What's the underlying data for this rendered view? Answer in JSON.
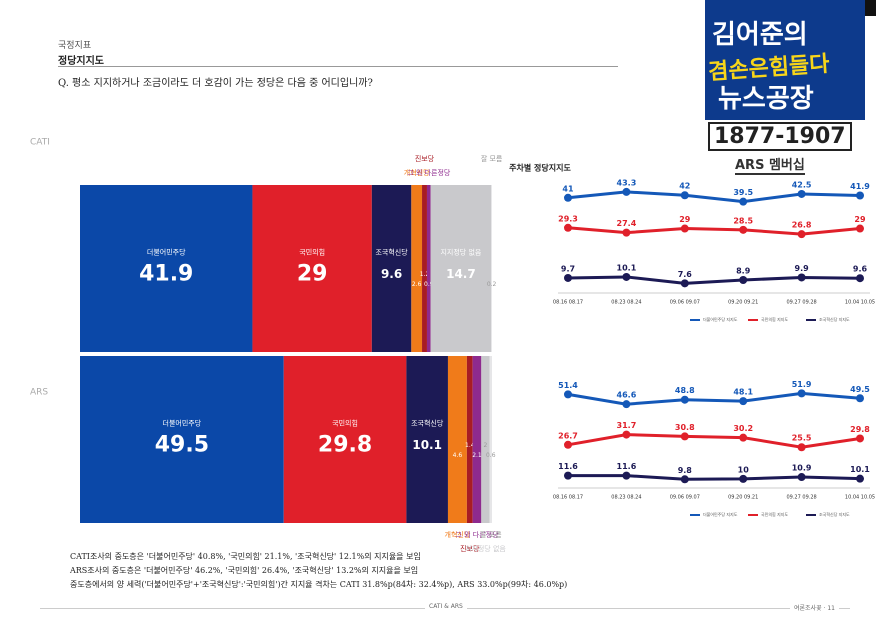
{
  "header": {
    "category": "국정지표",
    "subtitle": "정당지지도",
    "question": "Q. 평소 지지하거나 조금이라도 더 호감이 가는 정당은 다음 중 어디입니까?"
  },
  "chart_data": [
    {
      "type": "stackedbar",
      "label": "CATI",
      "categories": [
        "더불어민주당",
        "국민의힘",
        "조국혁신당",
        "개혁신당",
        "진보당",
        "그 외 다른정당",
        "지지정당 없음",
        "잘 모름"
      ],
      "values": [
        41.9,
        29.0,
        9.6,
        2.6,
        1.2,
        0.9,
        14.7,
        0.2
      ],
      "colors": [
        "#0b48a8",
        "#e0202a",
        "#1c1a55",
        "#f07b1a",
        "#a81c24",
        "#8e2a8e",
        "#c9c9cc",
        "#e6e6e8"
      ]
    },
    {
      "type": "stackedbar",
      "label": "ARS",
      "categories": [
        "더불어민주당",
        "국민의힘",
        "조국혁신당",
        "개혁신당",
        "진보당",
        "그 외 다른정당",
        "지지정당 없음",
        "잘 모름"
      ],
      "values": [
        49.5,
        29.8,
        10.1,
        4.6,
        1.4,
        2.1,
        2.0,
        0.6
      ],
      "colors": [
        "#0b48a8",
        "#e0202a",
        "#1c1a55",
        "#f07b1a",
        "#a81c24",
        "#8e2a8e",
        "#c9c9cc",
        "#e6e6e8"
      ]
    },
    {
      "type": "line",
      "title": "주차별 정당지지도",
      "categories": [
        "08.16 08.17",
        "08.23 08.24",
        "09.06 09.07",
        "09.20 09.21",
        "09.27 09.28",
        "10.04 10.05"
      ],
      "ylim": [
        5,
        46
      ],
      "series": [
        {
          "name": "더불어민주당 지지도",
          "color": "#1458b8",
          "values": [
            41.0,
            43.3,
            42.0,
            39.5,
            42.5,
            41.9
          ]
        },
        {
          "name": "국민의힘 지지도",
          "color": "#e0202a",
          "values": [
            29.3,
            27.4,
            29.0,
            28.5,
            26.8,
            29.0
          ]
        },
        {
          "name": "조국혁신당 지지도",
          "color": "#1c1a55",
          "values": [
            9.7,
            10.1,
            7.6,
            8.9,
            9.9,
            9.6
          ]
        }
      ]
    },
    {
      "type": "line",
      "categories": [
        "08.16 08.17",
        "08.23 08.24",
        "09.06 09.07",
        "09.20 09.21",
        "09.27 09.28",
        "10.04 10.05"
      ],
      "ylim": [
        7,
        56
      ],
      "series": [
        {
          "name": "더불어민주당 지지도",
          "color": "#1458b8",
          "values": [
            51.4,
            46.6,
            48.8,
            48.1,
            51.9,
            49.5
          ]
        },
        {
          "name": "국민의힘 지지도",
          "color": "#e0202a",
          "values": [
            26.7,
            31.7,
            30.8,
            30.2,
            25.5,
            29.8
          ]
        },
        {
          "name": "조국혁신당 지지도",
          "color": "#1c1a55",
          "values": [
            11.6,
            11.6,
            9.8,
            10.0,
            10.9,
            10.1
          ]
        }
      ]
    }
  ],
  "notes": [
    "CATI조사의 중도층은 '더불어민주당' 40.8%, '국민의힘' 21.1%, '조국혁신당' 12.1%의 지지율을 보임",
    "ARS조사의 중도층은 '더불어민주당' 46.2%, '국민의힘' 26.4%, '조국혁신당' 13.2%의 지지율을 보임",
    "중도층에서의 양 세력('더불어민주당'+'조국혁신당':'국민의힘')간 지지율 격차는 CATI 31.8%p(84차: 32.4%p), ARS 33.0%p(99차: 46.0%p)"
  ],
  "footer": {
    "center": "CATI & ARS",
    "right": "여론조사꽃 · 11"
  },
  "overlay": {
    "line1": "김어준의",
    "line2": "겸손은힘들다",
    "line3": "뉴스공장",
    "phone": "1877-1907",
    "sub": "ARS 멤버십"
  }
}
